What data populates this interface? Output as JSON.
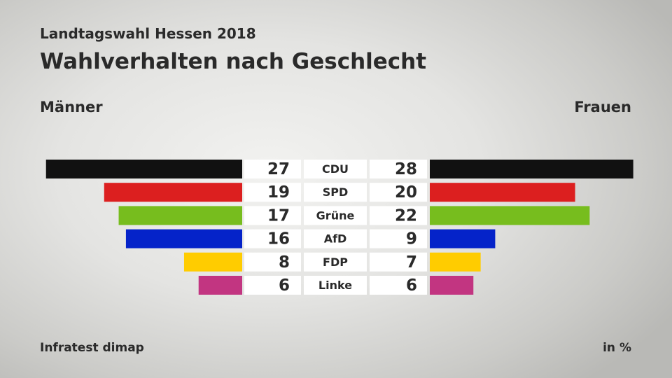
{
  "header": {
    "subtitle": "Landtagswahl Hessen 2018",
    "title": "Wahlverhalten nach Geschlecht"
  },
  "legend": {
    "left": "Männer",
    "right": "Frauen"
  },
  "footer": {
    "source": "Infratest dimap",
    "unit": "in %"
  },
  "chart_data": {
    "type": "bar",
    "orientation": "horizontal-butterfly",
    "categories": [
      "CDU",
      "SPD",
      "Grüne",
      "AfD",
      "FDP",
      "Linke"
    ],
    "series": [
      {
        "name": "Männer",
        "side": "left",
        "values": [
          27,
          19,
          17,
          16,
          8,
          6
        ]
      },
      {
        "name": "Frauen",
        "side": "right",
        "values": [
          28,
          20,
          22,
          9,
          7,
          6
        ]
      }
    ],
    "colors": [
      "#111111",
      "#dc1f1f",
      "#77bd1e",
      "#0523c9",
      "#ffcc00",
      "#c23581"
    ],
    "unit": "in %"
  }
}
